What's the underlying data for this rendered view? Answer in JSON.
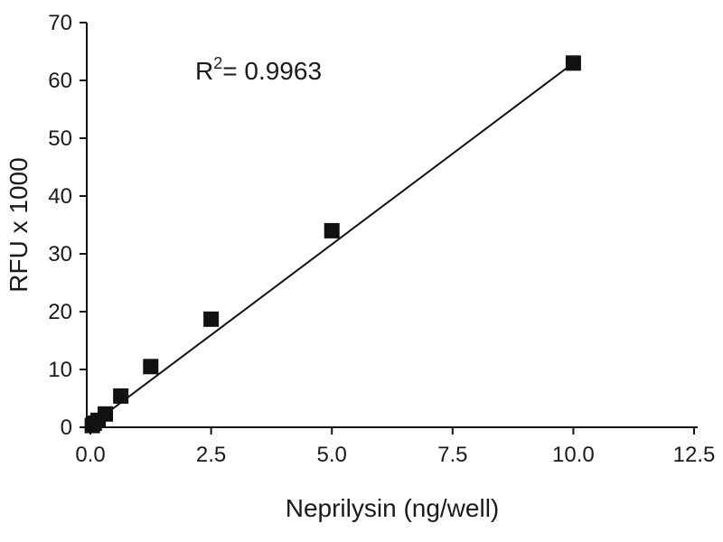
{
  "chart_data": {
    "type": "scatter",
    "title": "",
    "xlabel": "Neprilysin (ng/well)",
    "ylabel": "RFU x 1000",
    "xlim": [
      0,
      12.5
    ],
    "ylim": [
      0,
      70
    ],
    "x_ticks": [
      "0.0",
      "2.5",
      "5.0",
      "7.5",
      "10.0",
      "12.5"
    ],
    "y_ticks": [
      "0",
      "10",
      "20",
      "30",
      "40",
      "50",
      "60",
      "70"
    ],
    "grid": false,
    "legend": "none",
    "marker": "square",
    "series": [
      {
        "x": [
          0.04,
          0.08,
          0.16,
          0.31,
          0.63,
          1.25,
          2.5,
          5.0,
          10.0
        ],
        "y": [
          0.3,
          0.7,
          1.2,
          2.3,
          5.4,
          10.5,
          18.7,
          34.0,
          63.0
        ]
      }
    ],
    "fit_line": {
      "x": [
        0,
        10.0
      ],
      "y": [
        0.3,
        63.0
      ]
    },
    "annotation": {
      "base": "R",
      "sup": "2",
      "rest": "= 0.9963"
    },
    "colors": {
      "marker": "#111111",
      "line": "#111111",
      "text": "#1a1a1a"
    }
  }
}
